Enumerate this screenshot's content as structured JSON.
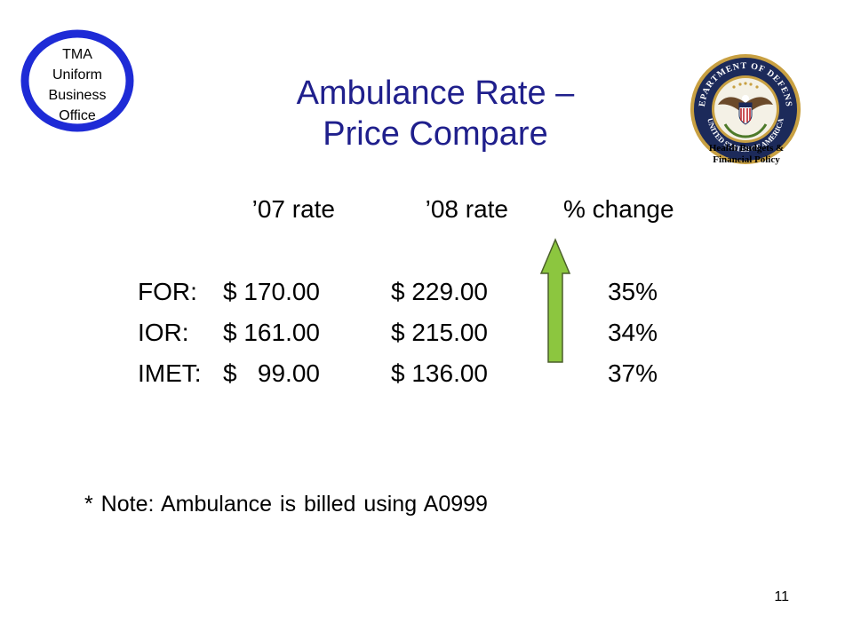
{
  "left_logo": {
    "line1": "TMA",
    "line2": "Uniform",
    "line3": "Business",
    "line4": "Office"
  },
  "right_logo": {
    "seal_text_top": "DEPARTMENT OF DEFENSE",
    "seal_text_bottom": "UNITED STATES OF AMERICA",
    "caption_line1": "Health Budgets &",
    "caption_line2": "Financial Policy"
  },
  "title": {
    "line1": "Ambulance Rate –",
    "line2": "Price Compare"
  },
  "table": {
    "headers": [
      "’07 rate",
      "’08 rate",
      "% change"
    ],
    "rows": [
      {
        "label": "FOR:",
        "rate07": "$ 170.00",
        "rate08": "$ 229.00",
        "change": "35%"
      },
      {
        "label": "IOR:",
        "rate07": "$ 161.00",
        "rate08": "$ 215.00",
        "change": "34%"
      },
      {
        "label": "IMET:",
        "rate07": "$   99.00",
        "rate08": "$ 136.00",
        "change": "37%"
      }
    ]
  },
  "arrow": {
    "direction": "up",
    "fill": "#8cc63f"
  },
  "note": "* Note: Ambulance is billed using A0999",
  "page_number": "11",
  "colors": {
    "title": "#1f1f8c",
    "logo_ring": "#1e2bd6",
    "seal_navy": "#1c2a5a",
    "seal_gold": "#c8a042"
  }
}
